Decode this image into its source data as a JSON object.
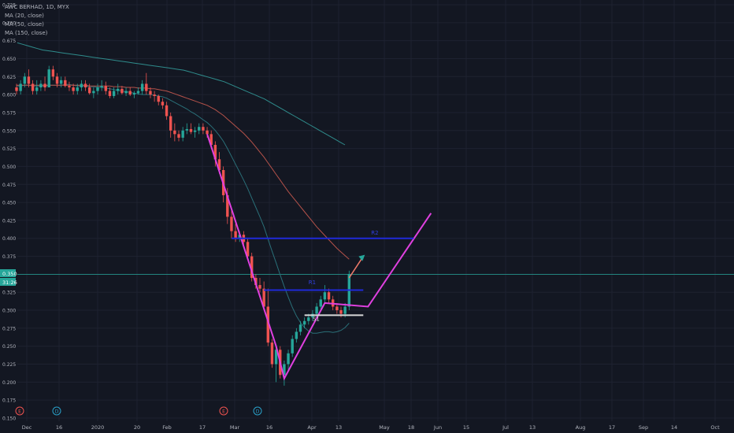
{
  "legend": {
    "title": "AWC BERHAD, 1D, MYX",
    "ma20": "MA (20, close)",
    "ma50": "MA (50, close)",
    "ma150": "MA (150, close)"
  },
  "price_axis": {
    "price_tag": "0.350",
    "time_tag": "31:26"
  },
  "colors": {
    "background": "#131722",
    "up": "#26a69a",
    "down": "#ef5350",
    "ma20": "#2a6f78",
    "ma50": "#b5524a",
    "ma150": "#2f8c8c",
    "drawing_magenta": "#e040e0",
    "drawing_blue": "#1f2ad8",
    "drawing_white": "#d8d8d8"
  },
  "chart_data": {
    "type": "candlestick",
    "title": "AWC BERHAD, 1D, MYX",
    "ylim": [
      0.15,
      0.725
    ],
    "yticks": [
      "0.725",
      "0.700",
      "0.675",
      "0.650",
      "0.625",
      "0.600",
      "0.575",
      "0.550",
      "0.525",
      "0.500",
      "0.475",
      "0.450",
      "0.425",
      "0.400",
      "0.375",
      "0.350",
      "0.325",
      "0.300",
      "0.275",
      "0.250",
      "0.225",
      "0.200",
      "0.175",
      "0.150"
    ],
    "xticks": [
      "Dec",
      "16",
      "2020",
      "20",
      "Feb",
      "17",
      "Mar",
      "16",
      "Apr",
      "13",
      "May",
      "18",
      "Jun",
      "15",
      "Jul",
      "13",
      "Aug",
      "17",
      "Sep",
      "14",
      "Oct"
    ],
    "event_markers": [
      {
        "label": "E",
        "type": "earnings",
        "date": "Nov"
      },
      {
        "label": "D",
        "type": "dividend",
        "date": "Dec"
      },
      {
        "label": "E",
        "type": "earnings",
        "date": "Feb"
      },
      {
        "label": "D",
        "type": "dividend",
        "date": "Mar"
      }
    ],
    "annotations": [
      {
        "text": "S1",
        "kind": "label"
      },
      {
        "text": "R1",
        "kind": "label"
      },
      {
        "text": "R2",
        "kind": "label"
      }
    ],
    "current_price": 0.35,
    "candles": [
      [
        0.61,
        0.615,
        0.6,
        0.605
      ],
      [
        0.605,
        0.62,
        0.6,
        0.615
      ],
      [
        0.615,
        0.63,
        0.61,
        0.625
      ],
      [
        0.625,
        0.635,
        0.61,
        0.615
      ],
      [
        0.615,
        0.62,
        0.6,
        0.605
      ],
      [
        0.605,
        0.62,
        0.6,
        0.61
      ],
      [
        0.61,
        0.62,
        0.605,
        0.615
      ],
      [
        0.615,
        0.625,
        0.605,
        0.61
      ],
      [
        0.61,
        0.64,
        0.61,
        0.635
      ],
      [
        0.635,
        0.64,
        0.62,
        0.625
      ],
      [
        0.625,
        0.63,
        0.61,
        0.615
      ],
      [
        0.615,
        0.625,
        0.61,
        0.62
      ],
      [
        0.62,
        0.625,
        0.61,
        0.612
      ],
      [
        0.612,
        0.618,
        0.605,
        0.61
      ],
      [
        0.61,
        0.615,
        0.6,
        0.605
      ],
      [
        0.605,
        0.615,
        0.6,
        0.61
      ],
      [
        0.61,
        0.62,
        0.605,
        0.615
      ],
      [
        0.615,
        0.62,
        0.605,
        0.61
      ],
      [
        0.61,
        0.615,
        0.6,
        0.602
      ],
      [
        0.602,
        0.61,
        0.595,
        0.605
      ],
      [
        0.605,
        0.615,
        0.6,
        0.61
      ],
      [
        0.61,
        0.62,
        0.605,
        0.612
      ],
      [
        0.612,
        0.618,
        0.6,
        0.605
      ],
      [
        0.605,
        0.61,
        0.595,
        0.598
      ],
      [
        0.598,
        0.61,
        0.595,
        0.605
      ],
      [
        0.605,
        0.615,
        0.6,
        0.608
      ],
      [
        0.608,
        0.612,
        0.6,
        0.602
      ],
      [
        0.602,
        0.61,
        0.598,
        0.605
      ],
      [
        0.605,
        0.61,
        0.598,
        0.6
      ],
      [
        0.6,
        0.605,
        0.595,
        0.602
      ],
      [
        0.602,
        0.61,
        0.6,
        0.605
      ],
      [
        0.605,
        0.62,
        0.6,
        0.615
      ],
      [
        0.615,
        0.63,
        0.6,
        0.605
      ],
      [
        0.605,
        0.61,
        0.595,
        0.6
      ],
      [
        0.6,
        0.605,
        0.59,
        0.598
      ],
      [
        0.598,
        0.6,
        0.585,
        0.59
      ],
      [
        0.59,
        0.595,
        0.58,
        0.585
      ],
      [
        0.585,
        0.59,
        0.565,
        0.57
      ],
      [
        0.57,
        0.575,
        0.54,
        0.55
      ],
      [
        0.55,
        0.56,
        0.535,
        0.545
      ],
      [
        0.545,
        0.55,
        0.535,
        0.54
      ],
      [
        0.54,
        0.555,
        0.535,
        0.55
      ],
      [
        0.55,
        0.56,
        0.545,
        0.552
      ],
      [
        0.552,
        0.56,
        0.545,
        0.548
      ],
      [
        0.548,
        0.555,
        0.54,
        0.55
      ],
      [
        0.55,
        0.56,
        0.545,
        0.555
      ],
      [
        0.555,
        0.56,
        0.545,
        0.55
      ],
      [
        0.55,
        0.555,
        0.54,
        0.545
      ],
      [
        0.545,
        0.55,
        0.525,
        0.53
      ],
      [
        0.53,
        0.535,
        0.5,
        0.51
      ],
      [
        0.51,
        0.52,
        0.49,
        0.495
      ],
      [
        0.495,
        0.5,
        0.45,
        0.46
      ],
      [
        0.46,
        0.47,
        0.42,
        0.43
      ],
      [
        0.43,
        0.44,
        0.4,
        0.41
      ],
      [
        0.41,
        0.42,
        0.395,
        0.4
      ],
      [
        0.4,
        0.41,
        0.395,
        0.405
      ],
      [
        0.405,
        0.41,
        0.39,
        0.395
      ],
      [
        0.395,
        0.4,
        0.37,
        0.375
      ],
      [
        0.375,
        0.38,
        0.34,
        0.345
      ],
      [
        0.345,
        0.35,
        0.33,
        0.335
      ],
      [
        0.335,
        0.345,
        0.325,
        0.33
      ],
      [
        0.33,
        0.34,
        0.3,
        0.305
      ],
      [
        0.305,
        0.33,
        0.25,
        0.255
      ],
      [
        0.255,
        0.26,
        0.22,
        0.225
      ],
      [
        0.225,
        0.25,
        0.2,
        0.245
      ],
      [
        0.245,
        0.25,
        0.205,
        0.21
      ],
      [
        0.21,
        0.23,
        0.195,
        0.225
      ],
      [
        0.225,
        0.245,
        0.215,
        0.24
      ],
      [
        0.24,
        0.265,
        0.235,
        0.26
      ],
      [
        0.26,
        0.275,
        0.255,
        0.27
      ],
      [
        0.27,
        0.285,
        0.265,
        0.28
      ],
      [
        0.28,
        0.29,
        0.275,
        0.285
      ],
      [
        0.285,
        0.295,
        0.28,
        0.29
      ],
      [
        0.29,
        0.3,
        0.285,
        0.295
      ],
      [
        0.295,
        0.31,
        0.29,
        0.305
      ],
      [
        0.305,
        0.32,
        0.3,
        0.315
      ],
      [
        0.315,
        0.335,
        0.31,
        0.325
      ],
      [
        0.325,
        0.33,
        0.31,
        0.315
      ],
      [
        0.315,
        0.32,
        0.3,
        0.305
      ],
      [
        0.305,
        0.31,
        0.295,
        0.3
      ],
      [
        0.3,
        0.305,
        0.29,
        0.295
      ],
      [
        0.295,
        0.31,
        0.29,
        0.305
      ],
      [
        0.305,
        0.355,
        0.3,
        0.35
      ]
    ],
    "series": [
      {
        "name": "MA (20, close)",
        "values": [
          0.612,
          0.612,
          0.613,
          0.613,
          0.612,
          0.612,
          0.612,
          0.612,
          0.613,
          0.613,
          0.613,
          0.613,
          0.614,
          0.614,
          0.613,
          0.612,
          0.612,
          0.612,
          0.611,
          0.611,
          0.61,
          0.61,
          0.609,
          0.608,
          0.607,
          0.606,
          0.605,
          0.604,
          0.603,
          0.602,
          0.601,
          0.6,
          0.6,
          0.6,
          0.599,
          0.598,
          0.597,
          0.595,
          0.592,
          0.589,
          0.586,
          0.583,
          0.58,
          0.576,
          0.573,
          0.569,
          0.565,
          0.561,
          0.556,
          0.55,
          0.543,
          0.535,
          0.525,
          0.514,
          0.503,
          0.492,
          0.481,
          0.469,
          0.456,
          0.443,
          0.43,
          0.416,
          0.399,
          0.382,
          0.366,
          0.349,
          0.333,
          0.318,
          0.304,
          0.292,
          0.283,
          0.276,
          0.271,
          0.268,
          0.268,
          0.269,
          0.27,
          0.27,
          0.269,
          0.27,
          0.272,
          0.276,
          0.282
        ]
      },
      {
        "name": "MA (50, close)",
        "values": [
          0.613,
          0.613,
          0.613,
          0.613,
          0.613,
          0.613,
          0.613,
          0.613,
          0.613,
          0.613,
          0.613,
          0.613,
          0.613,
          0.613,
          0.613,
          0.613,
          0.613,
          0.613,
          0.612,
          0.612,
          0.612,
          0.612,
          0.612,
          0.612,
          0.611,
          0.611,
          0.611,
          0.61,
          0.61,
          0.61,
          0.609,
          0.609,
          0.609,
          0.608,
          0.608,
          0.607,
          0.606,
          0.605,
          0.603,
          0.601,
          0.599,
          0.597,
          0.595,
          0.593,
          0.591,
          0.589,
          0.587,
          0.585,
          0.582,
          0.579,
          0.575,
          0.571,
          0.566,
          0.561,
          0.556,
          0.551,
          0.546,
          0.54,
          0.534,
          0.527,
          0.52,
          0.513,
          0.505,
          0.497,
          0.489,
          0.481,
          0.473,
          0.465,
          0.458,
          0.451,
          0.444,
          0.437,
          0.43,
          0.423,
          0.416,
          0.41,
          0.404,
          0.398,
          0.392,
          0.386,
          0.381,
          0.376,
          0.371
        ]
      },
      {
        "name": "MA (150, close)",
        "values": [
          0.672,
          0.67,
          0.668,
          0.666,
          0.664,
          0.662,
          0.661,
          0.66,
          0.659,
          0.658,
          0.657,
          0.656,
          0.655,
          0.654,
          0.653,
          0.652,
          0.651,
          0.65,
          0.649,
          0.648,
          0.647,
          0.646,
          0.645,
          0.644,
          0.643,
          0.642,
          0.641,
          0.64,
          0.639,
          0.638,
          0.637,
          0.636,
          0.635,
          0.634,
          0.632,
          0.63,
          0.628,
          0.626,
          0.624,
          0.622,
          0.62,
          0.618,
          0.615,
          0.612,
          0.609,
          0.606,
          0.603,
          0.6,
          0.597,
          0.594,
          0.59,
          0.586,
          0.582,
          0.578,
          0.574,
          0.57,
          0.566,
          0.562,
          0.558,
          0.554,
          0.55,
          0.546,
          0.542,
          0.538,
          0.534,
          0.53
        ]
      }
    ],
    "drawings": [
      {
        "kind": "pattern",
        "color": "magenta",
        "points": [
          [
            0.545
          ],
          [
            0.25
          ],
          [
            0.205
          ],
          [
            0.31
          ],
          [
            0.305
          ],
          [
            0.435
          ]
        ]
      },
      {
        "kind": "hline",
        "color": "blue",
        "label": "R2",
        "y": 0.4
      },
      {
        "kind": "hline",
        "color": "blue",
        "label": "R1",
        "y": 0.328
      },
      {
        "kind": "hline",
        "color": "white",
        "label": "S1",
        "y": 0.293
      },
      {
        "kind": "arrow",
        "color": "salmon",
        "from": 0.345,
        "to": 0.375
      }
    ]
  }
}
